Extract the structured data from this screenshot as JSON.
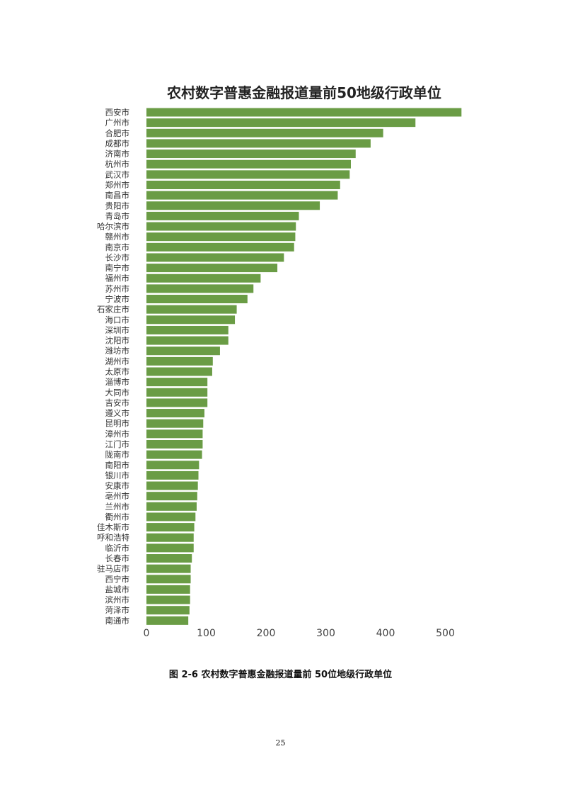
{
  "chart_data": {
    "type": "bar",
    "orientation": "horizontal",
    "title": "农村数字普惠金融报道量前50地级行政单位",
    "categories": [
      "西安市",
      "广州市",
      "合肥市",
      "成都市",
      "济南市",
      "杭州市",
      "武汉市",
      "郑州市",
      "南昌市",
      "贵阳市",
      "青岛市",
      "哈尔滨市",
      "赣州市",
      "南京市",
      "长沙市",
      "南宁市",
      "福州市",
      "苏州市",
      "宁波市",
      "石家庄市",
      "海口市",
      "深圳市",
      "沈阳市",
      "潍坊市",
      "湖州市",
      "太原市",
      "淄博市",
      "大同市",
      "吉安市",
      "遵义市",
      "昆明市",
      "漳州市",
      "江门市",
      "陇南市",
      "南阳市",
      "银川市",
      "安康市",
      "亳州市",
      "兰州市",
      "衢州市",
      "佳木斯市",
      "呼和浩特",
      "临沂市",
      "长春市",
      "驻马店市",
      "西宁市",
      "盐城市",
      "滨州市",
      "菏泽市",
      "南通市"
    ],
    "values": [
      527,
      450,
      396,
      375,
      350,
      342,
      340,
      324,
      320,
      290,
      255,
      250,
      249,
      247,
      230,
      219,
      191,
      179,
      169,
      151,
      148,
      137,
      137,
      123,
      111,
      110,
      102,
      102,
      102,
      97,
      95,
      94,
      94,
      93,
      88,
      87,
      86,
      85,
      84,
      82,
      80,
      79,
      79,
      76,
      74,
      74,
      73,
      73,
      72,
      70
    ],
    "xlim": [
      0,
      540
    ],
    "xticks": [
      0,
      100,
      200,
      300,
      400,
      500
    ],
    "bar_color": "#6a9c45",
    "xlabel": "",
    "ylabel": "",
    "grid": false,
    "legend": "none"
  },
  "caption": "图 2-6 农村数字普惠金融报道量前 50位地级行政单位",
  "page_number": "25"
}
